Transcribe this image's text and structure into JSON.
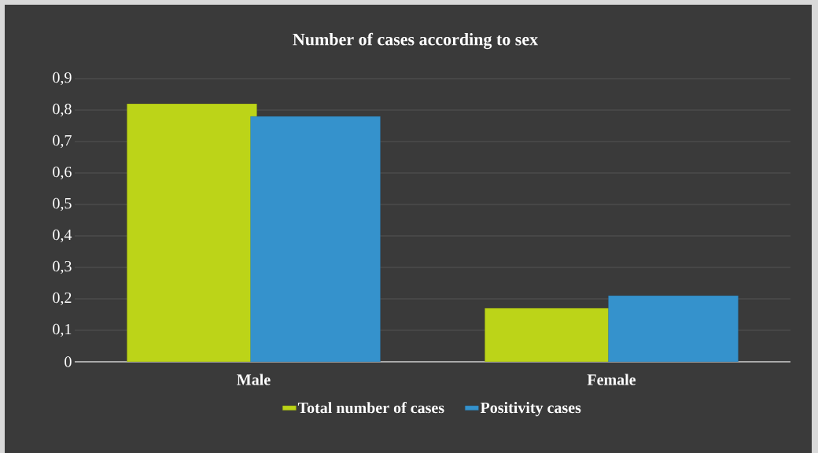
{
  "chart_data": {
    "type": "bar",
    "title": "Number of cases according to sex",
    "categories": [
      "Male",
      "Female"
    ],
    "series": [
      {
        "name": "Total number of cases",
        "color": "#bcd418",
        "values": [
          0.82,
          0.17
        ]
      },
      {
        "name": "Positivity cases",
        "color": "#3592cc",
        "values": [
          0.78,
          0.21
        ]
      }
    ],
    "ylim": [
      0,
      0.9
    ],
    "yticks": [
      0,
      {
        "value": 0.1,
        "label": "0,1"
      },
      {
        "value": 0.2,
        "label": "0,2"
      },
      {
        "value": 0.3,
        "label": "0,3"
      },
      {
        "value": 0.4,
        "label": "0,4"
      },
      {
        "value": 0.5,
        "label": "0,5"
      },
      {
        "value": 0.6,
        "label": "0,6"
      },
      {
        "value": 0.7,
        "label": "0,7"
      },
      {
        "value": 0.8,
        "label": "0,8"
      },
      {
        "value": 0.9,
        "label": "0,9"
      }
    ],
    "grid": "y",
    "legend": "bottom"
  }
}
